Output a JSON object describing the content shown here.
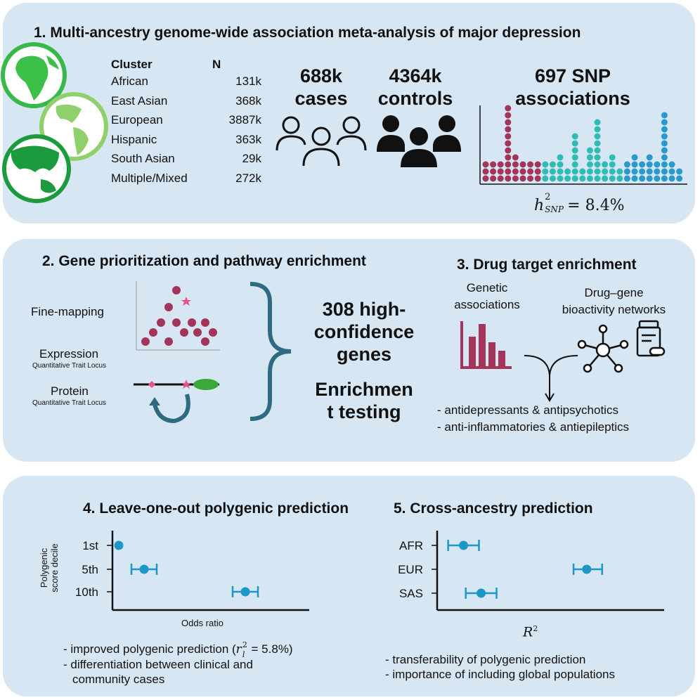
{
  "panel1": {
    "title": "1. Multi-ancestry genome-wide association meta-analysis of major depression",
    "table": {
      "col_cluster": "Cluster",
      "col_n": "N",
      "rows": [
        {
          "cluster": "African",
          "n": "131k"
        },
        {
          "cluster": "East Asian",
          "n": "368k"
        },
        {
          "cluster": "European",
          "n": "3887k"
        },
        {
          "cluster": "Hispanic",
          "n": "363k"
        },
        {
          "cluster": "South Asian",
          "n": "29k"
        },
        {
          "cluster": "Multiple/Mixed",
          "n": "272k"
        }
      ]
    },
    "cases_number": "688k",
    "cases_label": "cases",
    "controls_number": "4364k",
    "controls_label": "controls",
    "snp_number": "697 SNP",
    "snp_label": "associations",
    "h2_symbol": "h",
    "h2_super": "2",
    "h2_sub": "SNP",
    "h2_value": "= 8.4%",
    "colors": {
      "maroon": "#a3345a",
      "teal": "#2fbcb4",
      "blue": "#2a9acc",
      "globe": "#36b84a"
    }
  },
  "panel2": {
    "title": "2. Gene prioritization and pathway enrichment",
    "fine_mapping": "Fine-mapping",
    "expression": "Expression",
    "expression_sub": "Quantitative Trait Locus",
    "protein": "Protein",
    "protein_sub": "Quantitative Trait Locus",
    "genes_line1": "308 high-",
    "genes_line2": "confidence",
    "genes_line3": "genes",
    "enrich_line1": "Enrichmen",
    "enrich_line2": "t testing"
  },
  "panel3": {
    "title": "3. Drug target enrichment",
    "genetic_line1": "Genetic",
    "genetic_line2": "associations",
    "drug_line1": "Drug–gene",
    "drug_line2": "bioactivity networks",
    "bullets": [
      "- antidepressants & antipsychotics",
      "- anti-inflammatories & antiepileptics"
    ]
  },
  "panel4": {
    "title": "4. Leave-one-out polygenic prediction",
    "ylabel_line1": "Polygenic",
    "ylabel_line2": "score decile",
    "xlabel": "Odds ratio",
    "bullet1_pre": "- improved polygenic prediction (",
    "bullet1_r": "r",
    "bullet1_sub": "l",
    "bullet1_sup": "2",
    "bullet1_post": " = 5.8%)",
    "bullet2_line1": "- differentiation between clinical and",
    "bullet2_line2": "community cases"
  },
  "panel5": {
    "title": "5. Cross-ancestry prediction",
    "xlabel": "R",
    "xlabel_sup": "2",
    "bullets": [
      "- transferability of polygenic prediction",
      "- importance of including global populations"
    ]
  },
  "chart_data": [
    {
      "type": "scatter",
      "title": "4. Leave-one-out polygenic prediction",
      "xlabel": "Odds ratio",
      "ylabel": "Polygenic score decile",
      "categories": [
        "1st",
        "5th",
        "10th"
      ],
      "values": [
        1.0,
        1.4,
        3.0
      ],
      "ci_low": [
        1.0,
        1.2,
        2.8
      ],
      "ci_high": [
        1.0,
        1.6,
        3.2
      ],
      "xlim": [
        0.9,
        3.9
      ],
      "grid": false,
      "color": "#1f97c6"
    },
    {
      "type": "scatter",
      "title": "5. Cross-ancestry prediction",
      "xlabel": "R²",
      "ylabel": "",
      "categories": [
        "AFR",
        "EUR",
        "SAS"
      ],
      "values": [
        0.12,
        0.68,
        0.2
      ],
      "ci_low": [
        0.05,
        0.62,
        0.13
      ],
      "ci_high": [
        0.19,
        0.75,
        0.27
      ],
      "xlim": [
        0.0,
        1.0
      ],
      "grid": false,
      "color": "#1f97c6"
    }
  ]
}
